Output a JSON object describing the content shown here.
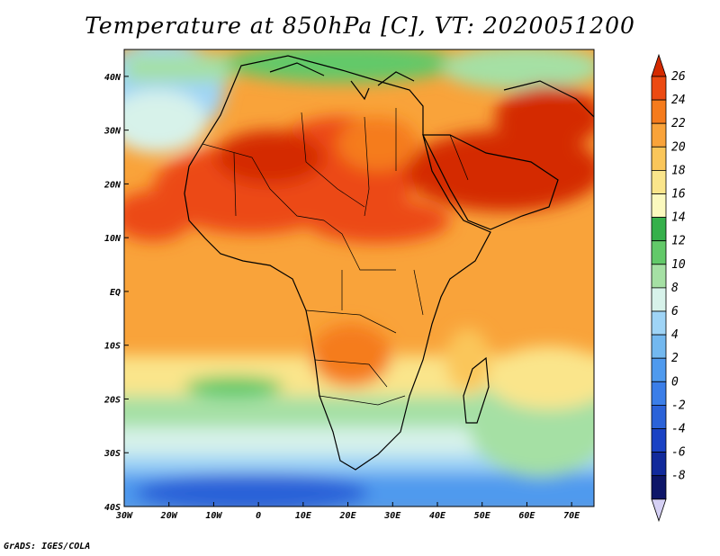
{
  "title": "Temperature at 850hPa [C], VT: 2020051200",
  "footer": "GrADS: IGES/COLA",
  "map": {
    "lon_range": [
      -30,
      75
    ],
    "lat_range": [
      -40,
      45
    ],
    "lon_ticks": [
      {
        "lon": -30,
        "label": "30W"
      },
      {
        "lon": -20,
        "label": "20W"
      },
      {
        "lon": -10,
        "label": "10W"
      },
      {
        "lon": 0,
        "label": "0"
      },
      {
        "lon": 10,
        "label": "10E"
      },
      {
        "lon": 20,
        "label": "20E"
      },
      {
        "lon": 30,
        "label": "30E"
      },
      {
        "lon": 40,
        "label": "40E"
      },
      {
        "lon": 50,
        "label": "50E"
      },
      {
        "lon": 60,
        "label": "60E"
      },
      {
        "lon": 70,
        "label": "70E"
      }
    ],
    "lat_ticks": [
      {
        "lat": 40,
        "label": "40N"
      },
      {
        "lat": 30,
        "label": "30N"
      },
      {
        "lat": 20,
        "label": "20N"
      },
      {
        "lat": 10,
        "label": "10N"
      },
      {
        "lat": 0,
        "label": "EQ"
      },
      {
        "lat": -10,
        "label": "10S"
      },
      {
        "lat": -20,
        "label": "20S"
      },
      {
        "lat": -30,
        "label": "30S"
      },
      {
        "lat": -40,
        "label": "40S"
      }
    ]
  },
  "colorbar": {
    "labels": [
      "26",
      "24",
      "22",
      "20",
      "18",
      "16",
      "14",
      "12",
      "10",
      "8",
      "6",
      "4",
      "2",
      "0",
      "-2",
      "-4",
      "-6",
      "-8"
    ],
    "colors": [
      "#d42a00",
      "#ec4a12",
      "#f57b1c",
      "#f9a33a",
      "#fac65a",
      "#fae58b",
      "#fbf9be",
      "#35b04b",
      "#62c969",
      "#a5e0a4",
      "#d7f2ea",
      "#9fd4f6",
      "#73b8ef",
      "#4f9aee",
      "#3b7ee8",
      "#2b62d8",
      "#1a42c4",
      "#112a9b",
      "#0d1668",
      "#d5d0f4"
    ]
  },
  "temperature_field": {
    "description_units": "C",
    "regions": [
      {
        "name": "north_atlantic",
        "value": 6
      },
      {
        "name": "mediterranean",
        "value": 12
      },
      {
        "name": "sahara",
        "value": 24
      },
      {
        "name": "arabia",
        "value": 25
      },
      {
        "name": "iran_pakistan",
        "value": 24
      },
      {
        "name": "sahel",
        "value": 21
      },
      {
        "name": "equatorial_africa",
        "value": 19
      },
      {
        "name": "angola_zambia",
        "value": 22
      },
      {
        "name": "south_atlantic_mid",
        "value": 13
      },
      {
        "name": "southern_ocean",
        "value": 2
      },
      {
        "name": "indian_ocean",
        "value": 15
      },
      {
        "name": "madagascar_waters",
        "value": 18
      }
    ]
  }
}
